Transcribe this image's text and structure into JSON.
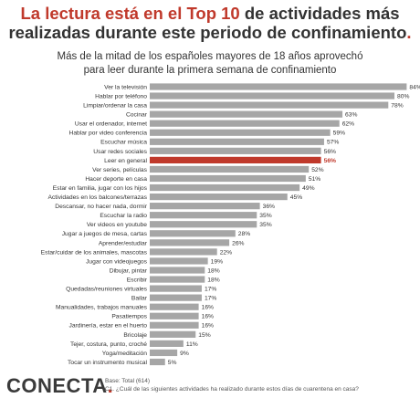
{
  "header": {
    "title_red": "La lectura está en el Top 10",
    "title_rest_line1": " de actividades más",
    "title_line2": "realizadas durante este periodo de confinamiento",
    "title_period": "."
  },
  "subtitle": {
    "line1": "Más de la mitad de los españoles mayores de 18 años aprovechó",
    "line2": "para leer durante la primera semana de confinamiento"
  },
  "chart_data": {
    "type": "bar",
    "orientation": "horizontal",
    "title": "Más de la mitad de los españoles mayores de 18 años aprovechó para leer durante la primera semana de confinamiento",
    "xlim": [
      0,
      100
    ],
    "grid": false,
    "legend": "none",
    "value_suffix": "%",
    "highlight_index": 8,
    "categories": [
      "Ver la televisión",
      "Hablar por teléfono",
      "Limpiar/ordenar la casa",
      "Cocinar",
      "Usar el ordenador, internet",
      "Hablar por video conferencia",
      "Escuchar música",
      "Usar redes sociales",
      "Leer en general",
      "Ver series, películas",
      "Hacer deporte en casa",
      "Estar en familia, jugar con los hijos",
      "Actividades en los balcones/terrazas",
      "Descansar, no hacer nada, dormir",
      "Escuchar la radio",
      "Ver videos en youtube",
      "Jugar a juegos de mesa, cartas",
      "Aprender/estudiar",
      "Estar/cuidar de los animales, mascotas",
      "Jugar con videojuegos",
      "Dibujar, pintar",
      "Escribir",
      "Quedadas/reuniones virtuales",
      "Bailar",
      "Manualidades, trabajos manuales",
      "Pasatiempos",
      "Jardinería, estar en el huerto",
      "Bricolaje",
      "Tejer, costura, punto, croché",
      "Yoga/meditación",
      "Tocar un instrumento musical"
    ],
    "values": [
      84,
      80,
      78,
      63,
      62,
      59,
      57,
      56,
      56,
      52,
      51,
      49,
      45,
      36,
      35,
      35,
      28,
      26,
      22,
      19,
      18,
      18,
      17,
      17,
      16,
      16,
      16,
      15,
      11,
      9,
      5
    ]
  },
  "colors": {
    "bar": "#a6a6a6",
    "highlight": "#c0392b",
    "text": "#333333"
  },
  "footer": {
    "logo_main": "CONECTA",
    "logo_dot": ".",
    "base_note": "Base: Total (614)",
    "question_note": "C1. ¿Cuál de las siguientes actividades ha realizado durante estos días de cuarentena en casa?"
  }
}
